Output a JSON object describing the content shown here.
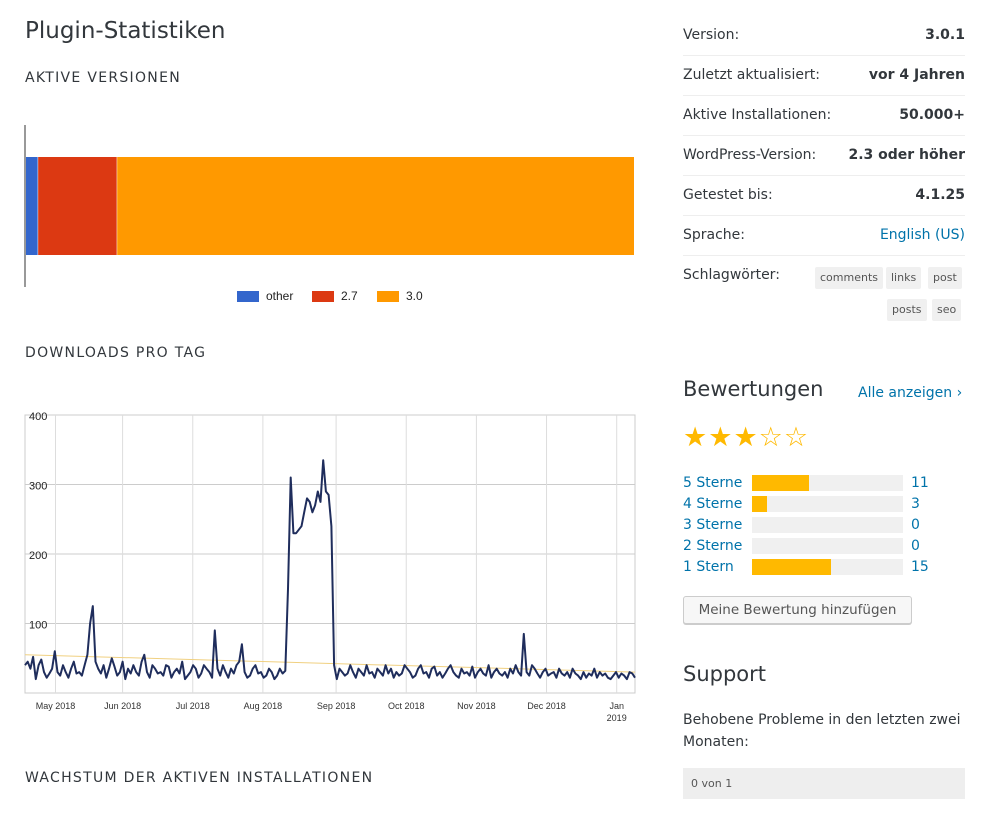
{
  "page": {
    "title": "Plugin-Statistiken",
    "sections": {
      "active_versions": "AKTIVE VERSIONEN",
      "downloads_per_day": "DOWNLOADS PRO TAG",
      "growth": "WACHSTUM DER AKTIVEN INSTALLATIONEN"
    }
  },
  "meta": {
    "rows": [
      {
        "label": "Version:",
        "value": "3.0.1",
        "link": false
      },
      {
        "label": "Zuletzt aktualisiert:",
        "value": "vor 4 Jahren",
        "link": false
      },
      {
        "label": "Aktive Installationen:",
        "value": "50.000+",
        "link": false
      },
      {
        "label": "WordPress-Version:",
        "value": "2.3 oder höher",
        "link": false
      },
      {
        "label": "Getestet bis:",
        "value": "4.1.25",
        "link": false
      },
      {
        "label": "Sprache:",
        "value": "English (US)",
        "link": true
      }
    ],
    "tags_label": "Schlagwörter:",
    "tags": [
      "comments",
      "links",
      "post",
      "posts",
      "seo"
    ]
  },
  "ratings": {
    "heading": "Bewertungen",
    "view_all": "Alle anzeigen",
    "stars_filled": 3,
    "stars_total": 5,
    "rows": [
      {
        "label": "5 Sterne",
        "count": "11",
        "fraction": 0.38
      },
      {
        "label": "4 Sterne",
        "count": "3",
        "fraction": 0.1
      },
      {
        "label": "3 Sterne",
        "count": "0",
        "fraction": 0
      },
      {
        "label": "2 Sterne",
        "count": "0",
        "fraction": 0
      },
      {
        "label": "1 Stern",
        "count": "15",
        "fraction": 0.52
      }
    ],
    "add_button": "Meine Bewertung hinzufügen"
  },
  "support": {
    "heading": "Support",
    "text": "Behobene Probleme in den letzten zwei Monaten:",
    "status": "0 von 1"
  },
  "colors": {
    "other": "#3366cc",
    "v27": "#dc3912",
    "v30": "#ff9900",
    "line": "#1f2d5c",
    "trend": "#f0d080",
    "star": "#ffb900",
    "link": "#0073aa"
  },
  "chart_data": [
    {
      "type": "bar",
      "orientation": "horizontal-stacked",
      "series": [
        {
          "name": "other",
          "values": [
            2
          ]
        },
        {
          "name": "2.7",
          "values": [
            13
          ]
        },
        {
          "name": "3.0",
          "values": [
            85
          ]
        }
      ],
      "unit": "%",
      "legend": "bottom"
    },
    {
      "type": "line",
      "x_tick_labels": [
        "May 2018",
        "Jun 2018",
        "Jul 2018",
        "Aug 2018",
        "Sep 2018",
        "Oct 2018",
        "Nov 2018",
        "Dec 2018",
        "Jan 2019"
      ],
      "ylim": [
        0,
        400
      ],
      "y_ticks": [
        100,
        200,
        300,
        400
      ],
      "grid": true,
      "series": [
        {
          "values": [
            40,
            45,
            35,
            52,
            20,
            40,
            48,
            30,
            22,
            28,
            35,
            60,
            30,
            25,
            40,
            30,
            22,
            35,
            45,
            28,
            30,
            25,
            40,
            55,
            100,
            125,
            45,
            35,
            28,
            40,
            22,
            35,
            50,
            38,
            25,
            30,
            45,
            20,
            35,
            28,
            40,
            30,
            25,
            45,
            55,
            30,
            22,
            40,
            35,
            28,
            30,
            25,
            40,
            38,
            22,
            30,
            35,
            28,
            45,
            20,
            25,
            30,
            40,
            35,
            22,
            28,
            40,
            35,
            30,
            22,
            90,
            35,
            25,
            40,
            30,
            22,
            35,
            28,
            40,
            45,
            70,
            30,
            22,
            25,
            35,
            40,
            28,
            30,
            22,
            25,
            35,
            30,
            20,
            25,
            35,
            28,
            32,
            150,
            310,
            230,
            230,
            235,
            240,
            260,
            280,
            275,
            260,
            270,
            290,
            275,
            335,
            290,
            285,
            240,
            40,
            20,
            35,
            30,
            25,
            28,
            40,
            30,
            22,
            35,
            30,
            25,
            40,
            28,
            30,
            22,
            35,
            30,
            25,
            40,
            28,
            35,
            22,
            30,
            25,
            28,
            40,
            35,
            30,
            22,
            25,
            35,
            40,
            28,
            30,
            22,
            35,
            38,
            25,
            30,
            22,
            28,
            35,
            40,
            30,
            25,
            22,
            35,
            28,
            30,
            25,
            38,
            22,
            30,
            35,
            28,
            25,
            40,
            22,
            30,
            35,
            28,
            25,
            30,
            22,
            35,
            28,
            40,
            30,
            25,
            85,
            30,
            25,
            40,
            35,
            28,
            22,
            30,
            35,
            25,
            28,
            30,
            22,
            35,
            28,
            25,
            30,
            22,
            35,
            28,
            25,
            20,
            30,
            22,
            28,
            25,
            35,
            22,
            30,
            25,
            28,
            22,
            20,
            25,
            30,
            22,
            28,
            25,
            20,
            30,
            28,
            22
          ]
        },
        {
          "values": [
            55,
            30
          ]
        }
      ]
    }
  ]
}
